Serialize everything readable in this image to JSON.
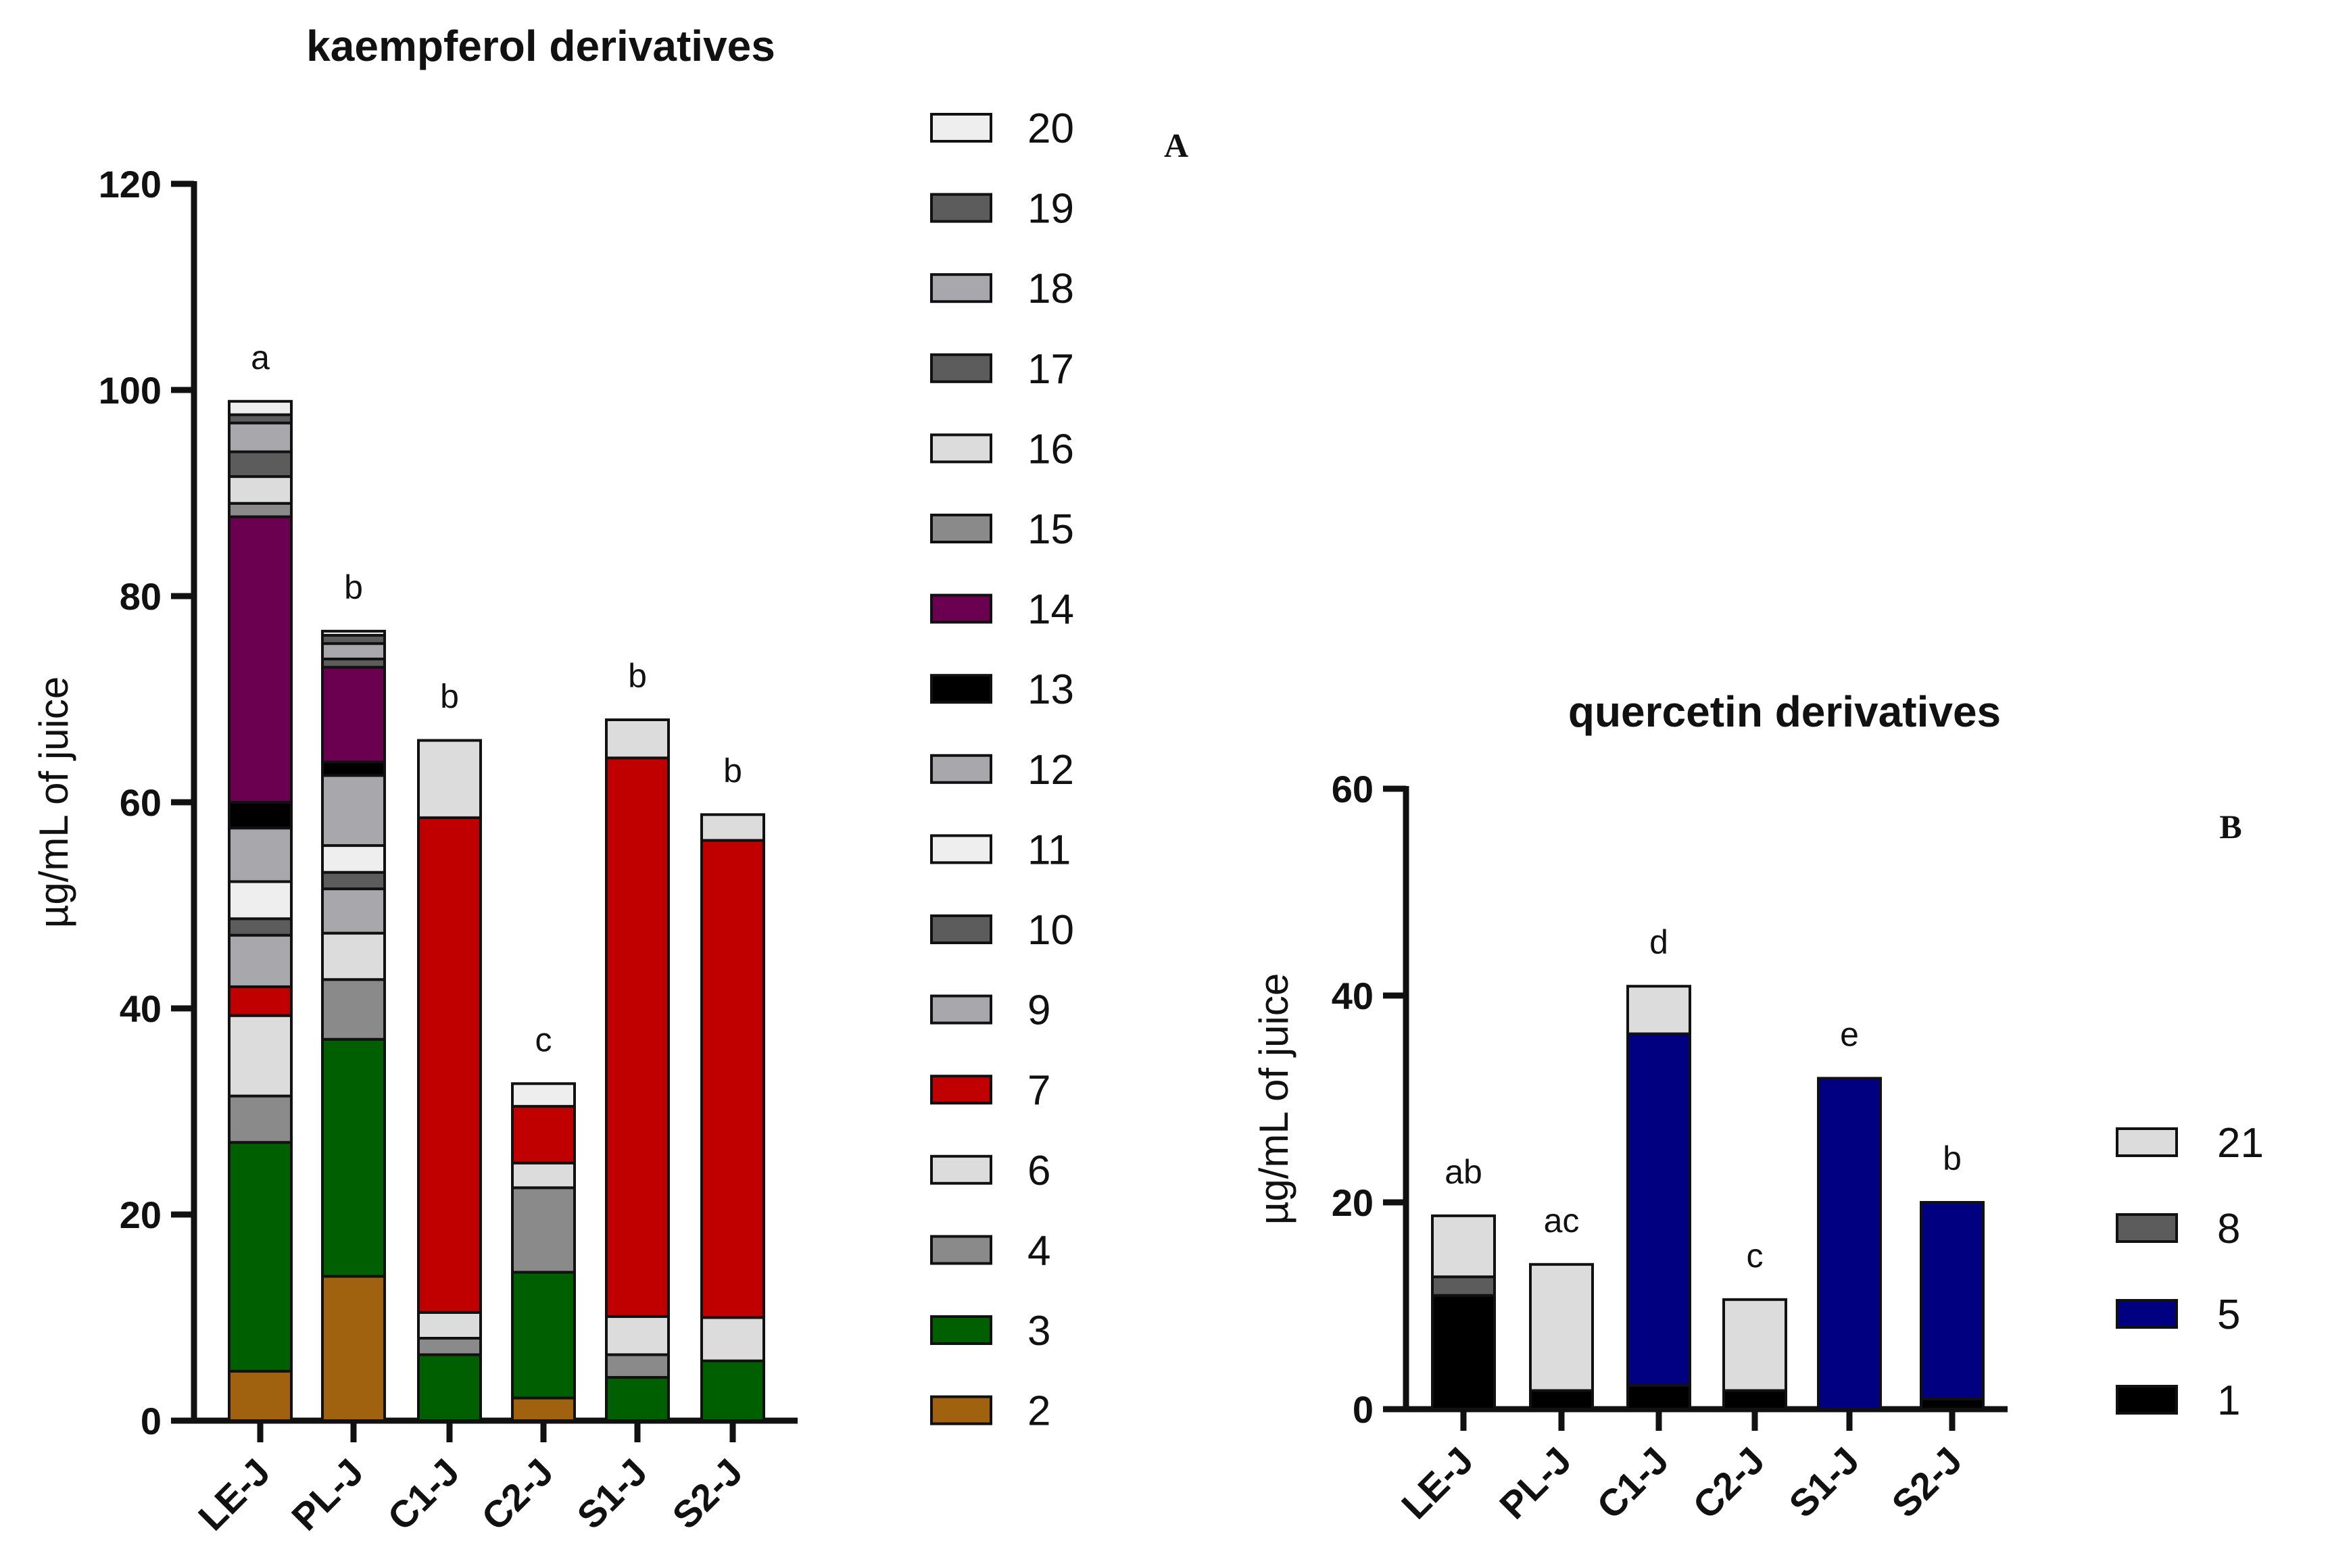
{
  "chart_data": [
    {
      "panel": "A",
      "type": "bar",
      "stacked": true,
      "title": "kaempferol derivatives",
      "ylabel": "µg/mL of juice",
      "xlabel": "",
      "ylim": [
        0,
        120
      ],
      "yticks": [
        0,
        20,
        40,
        60,
        80,
        100,
        120
      ],
      "categories": [
        "LE-J",
        "PL-J",
        "C1-J",
        "C2-J",
        "S1-J",
        "S2-J"
      ],
      "significance": [
        "a",
        "b",
        "b",
        "c",
        "b",
        "b"
      ],
      "legend_position": "right",
      "series": [
        {
          "name": "2",
          "color": "#a0620f",
          "values": [
            4.8,
            14.0,
            0,
            2.2,
            0,
            0
          ]
        },
        {
          "name": "3",
          "color": "#005f00",
          "values": [
            22.2,
            23.0,
            6.4,
            12.2,
            4.2,
            5.8
          ]
        },
        {
          "name": "4",
          "color": "#8a8a8a",
          "values": [
            4.5,
            5.8,
            1.6,
            8.2,
            2.2,
            0
          ]
        },
        {
          "name": "6",
          "color": "#dcdcdc",
          "values": [
            7.8,
            4.5,
            2.5,
            2.4,
            3.7,
            4.2
          ]
        },
        {
          "name": "7",
          "color": "#c00000",
          "values": [
            2.8,
            0,
            48.0,
            5.5,
            54.2,
            46.3
          ]
        },
        {
          "name": "9",
          "color": "#a8a8ac",
          "values": [
            5.0,
            4.3,
            0,
            0,
            0,
            0
          ]
        },
        {
          "name": "10",
          "color": "#5c5c5c",
          "values": [
            1.6,
            1.6,
            0,
            0,
            0,
            0
          ]
        },
        {
          "name": "11",
          "color": "#eeeeee",
          "values": [
            3.6,
            2.6,
            0,
            0,
            0,
            0
          ]
        },
        {
          "name": "12",
          "color": "#a8a8ac",
          "values": [
            5.2,
            6.8,
            0,
            0,
            0,
            0
          ]
        },
        {
          "name": "13",
          "color": "#000000",
          "values": [
            2.5,
            1.3,
            0,
            0,
            0,
            0
          ]
        },
        {
          "name": "14",
          "color": "#6b0050",
          "values": [
            27.7,
            9.2,
            0,
            0,
            0,
            0
          ]
        },
        {
          "name": "15",
          "color": "#8a8a8a",
          "values": [
            1.3,
            0,
            0,
            0,
            0,
            0
          ]
        },
        {
          "name": "16",
          "color": "#dcdcdc",
          "values": [
            2.6,
            0,
            7.5,
            0,
            3.7,
            2.5
          ]
        },
        {
          "name": "17",
          "color": "#5c5c5c",
          "values": [
            2.4,
            0.8,
            0,
            0,
            0,
            0
          ]
        },
        {
          "name": "18",
          "color": "#a8a8ac",
          "values": [
            2.8,
            1.5,
            0,
            0,
            0,
            0
          ]
        },
        {
          "name": "19",
          "color": "#5c5c5c",
          "values": [
            0.8,
            0.8,
            0,
            0,
            0,
            0
          ]
        },
        {
          "name": "20",
          "color": "#eeeeee",
          "values": [
            1.3,
            0.4,
            0,
            2.2,
            0,
            0
          ]
        }
      ]
    },
    {
      "panel": "B",
      "type": "bar",
      "stacked": true,
      "title": "quercetin derivatives",
      "ylabel": "µg/mL of juice",
      "xlabel": "",
      "ylim": [
        0,
        60
      ],
      "yticks": [
        0,
        20,
        40,
        60
      ],
      "categories": [
        "LE-J",
        "PL-J",
        "C1-J",
        "C2-J",
        "S1-J",
        "S2-J"
      ],
      "significance": [
        "ab",
        "ac",
        "d",
        "c",
        "e",
        "b"
      ],
      "legend_position": "bottom-right",
      "series": [
        {
          "name": "1",
          "color": "#000000",
          "values": [
            11.0,
            1.8,
            2.3,
            1.8,
            0,
            1.0
          ]
        },
        {
          "name": "5",
          "color": "#000080",
          "values": [
            0,
            0,
            34.0,
            0,
            32.0,
            19.0
          ]
        },
        {
          "name": "8",
          "color": "#5c5c5c",
          "values": [
            1.8,
            0,
            0,
            0,
            0,
            0
          ]
        },
        {
          "name": "21",
          "color": "#dcdcdc",
          "values": [
            5.9,
            12.2,
            4.6,
            8.8,
            0,
            0
          ]
        }
      ]
    }
  ]
}
